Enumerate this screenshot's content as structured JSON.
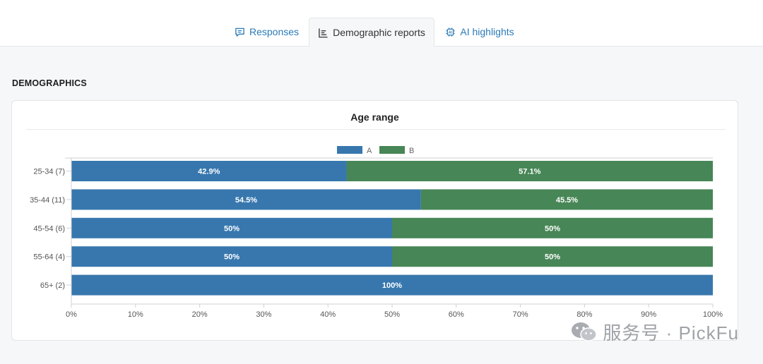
{
  "tabs": [
    {
      "label": "Responses",
      "icon": "speech-bubble-icon",
      "active": false
    },
    {
      "label": "Demographic reports",
      "icon": "bar-chart-icon",
      "active": true
    },
    {
      "label": "AI highlights",
      "icon": "ai-chip-icon",
      "active": false
    }
  ],
  "section_title": "DEMOGRAPHICS",
  "card": {
    "title": "Age range"
  },
  "colors": {
    "A": "#3777ae",
    "B": "#478656",
    "accent": "#2a7ab8"
  },
  "chart_data": {
    "type": "bar",
    "orientation": "horizontal",
    "stacked": true,
    "title": "Age range",
    "categories": [
      "25-34 (7)",
      "35-44 (11)",
      "45-54 (6)",
      "55-64 (4)",
      "65+ (2)"
    ],
    "series": [
      {
        "name": "A",
        "values": [
          42.9,
          54.5,
          50,
          50,
          100
        ],
        "labels": [
          "42.9%",
          "54.5%",
          "50%",
          "50%",
          "100%"
        ]
      },
      {
        "name": "B",
        "values": [
          57.1,
          45.5,
          50,
          50,
          0
        ],
        "labels": [
          "57.1%",
          "45.5%",
          "50%",
          "50%",
          ""
        ]
      }
    ],
    "xlim": [
      0,
      100
    ],
    "xticks": [
      "0%",
      "10%",
      "20%",
      "30%",
      "40%",
      "50%",
      "60%",
      "70%",
      "80%",
      "90%",
      "100%"
    ],
    "legend": "top-center",
    "grid": false
  },
  "watermark": "服务号 · PickFu"
}
